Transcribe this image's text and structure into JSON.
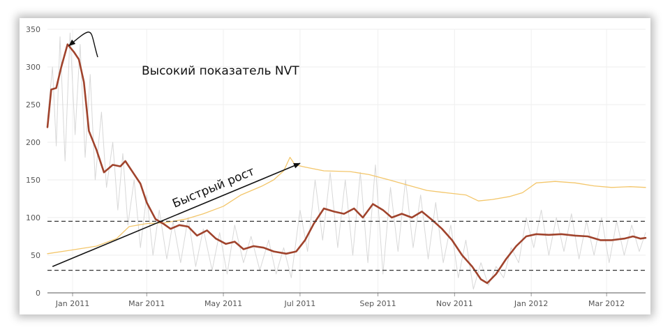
{
  "chart_data": {
    "type": "line",
    "title": "",
    "xlabel": "",
    "ylabel": "",
    "x_range": [
      "2010-12-12",
      "2012-04-01"
    ],
    "ylim": [
      0,
      350
    ],
    "y_ticks": [
      0,
      50,
      100,
      150,
      200,
      250,
      300,
      350
    ],
    "x_ticks": [
      {
        "date": "2011-01-01",
        "label": "Jan 2011"
      },
      {
        "date": "2011-03-01",
        "label": "Mar 2011"
      },
      {
        "date": "2011-05-01",
        "label": "May 2011"
      },
      {
        "date": "2011-07-01",
        "label": "Jul 2011"
      },
      {
        "date": "2011-09-01",
        "label": "Sep 2011"
      },
      {
        "date": "2011-11-01",
        "label": "Nov 2011"
      },
      {
        "date": "2012-01-01",
        "label": "Jan 2012"
      },
      {
        "date": "2012-03-01",
        "label": "Mar 2012"
      }
    ],
    "grid": true,
    "legend": "none",
    "reference_lines": [
      {
        "y": 95,
        "style": "dashed",
        "color": "#333333"
      },
      {
        "y": 30,
        "style": "dashed",
        "color": "#333333"
      }
    ],
    "series": [
      {
        "style": "thin-noisy",
        "color": "#d8d8d8",
        "points": [
          [
            "2010-12-12",
            230
          ],
          [
            "2010-12-16",
            300
          ],
          [
            "2010-12-19",
            195
          ],
          [
            "2010-12-22",
            340
          ],
          [
            "2010-12-26",
            175
          ],
          [
            "2010-12-30",
            345
          ],
          [
            "2011-01-03",
            210
          ],
          [
            "2011-01-07",
            330
          ],
          [
            "2011-01-11",
            180
          ],
          [
            "2011-01-15",
            290
          ],
          [
            "2011-01-19",
            150
          ],
          [
            "2011-01-24",
            240
          ],
          [
            "2011-01-28",
            140
          ],
          [
            "2011-02-02",
            200
          ],
          [
            "2011-02-06",
            110
          ],
          [
            "2011-02-10",
            185
          ],
          [
            "2011-02-14",
            90
          ],
          [
            "2011-02-19",
            150
          ],
          [
            "2011-02-24",
            60
          ],
          [
            "2011-03-01",
            130
          ],
          [
            "2011-03-06",
            50
          ],
          [
            "2011-03-11",
            110
          ],
          [
            "2011-03-17",
            45
          ],
          [
            "2011-03-22",
            95
          ],
          [
            "2011-03-28",
            40
          ],
          [
            "2011-04-03",
            100
          ],
          [
            "2011-04-09",
            35
          ],
          [
            "2011-04-15",
            85
          ],
          [
            "2011-04-22",
            30
          ],
          [
            "2011-04-28",
            80
          ],
          [
            "2011-05-04",
            25
          ],
          [
            "2011-05-10",
            90
          ],
          [
            "2011-05-17",
            40
          ],
          [
            "2011-05-23",
            75
          ],
          [
            "2011-05-30",
            30
          ],
          [
            "2011-06-06",
            70
          ],
          [
            "2011-06-12",
            25
          ],
          [
            "2011-06-18",
            60
          ],
          [
            "2011-06-24",
            20
          ],
          [
            "2011-07-01",
            110
          ],
          [
            "2011-07-07",
            55
          ],
          [
            "2011-07-13",
            150
          ],
          [
            "2011-07-19",
            70
          ],
          [
            "2011-07-25",
            160
          ],
          [
            "2011-07-31",
            60
          ],
          [
            "2011-08-06",
            150
          ],
          [
            "2011-08-12",
            50
          ],
          [
            "2011-08-18",
            160
          ],
          [
            "2011-08-24",
            40
          ],
          [
            "2011-08-30",
            170
          ],
          [
            "2011-09-05",
            25
          ],
          [
            "2011-09-11",
            140
          ],
          [
            "2011-09-17",
            55
          ],
          [
            "2011-09-23",
            150
          ],
          [
            "2011-09-29",
            60
          ],
          [
            "2011-10-05",
            130
          ],
          [
            "2011-10-11",
            45
          ],
          [
            "2011-10-17",
            120
          ],
          [
            "2011-10-23",
            40
          ],
          [
            "2011-10-29",
            90
          ],
          [
            "2011-11-04",
            20
          ],
          [
            "2011-11-10",
            70
          ],
          [
            "2011-11-16",
            5
          ],
          [
            "2011-11-22",
            40
          ],
          [
            "2011-11-28",
            10
          ],
          [
            "2011-12-04",
            35
          ],
          [
            "2011-12-10",
            20
          ],
          [
            "2011-12-16",
            60
          ],
          [
            "2011-12-22",
            40
          ],
          [
            "2011-12-28",
            100
          ],
          [
            "2012-01-03",
            60
          ],
          [
            "2012-01-09",
            110
          ],
          [
            "2012-01-15",
            50
          ],
          [
            "2012-01-21",
            100
          ],
          [
            "2012-01-27",
            55
          ],
          [
            "2012-02-02",
            105
          ],
          [
            "2012-02-08",
            45
          ],
          [
            "2012-02-14",
            95
          ],
          [
            "2012-02-20",
            50
          ],
          [
            "2012-02-26",
            100
          ],
          [
            "2012-03-03",
            40
          ],
          [
            "2012-03-09",
            95
          ],
          [
            "2012-03-15",
            50
          ],
          [
            "2012-03-21",
            90
          ],
          [
            "2012-03-27",
            55
          ],
          [
            "2012-04-01",
            80
          ]
        ]
      },
      {
        "style": "thin",
        "color": "#f3c66a",
        "points": [
          [
            "2010-12-12",
            52
          ],
          [
            "2011-01-01",
            57
          ],
          [
            "2011-01-20",
            62
          ],
          [
            "2011-02-05",
            72
          ],
          [
            "2011-02-15",
            88
          ],
          [
            "2011-03-01",
            92
          ],
          [
            "2011-03-15",
            93
          ],
          [
            "2011-04-01",
            98
          ],
          [
            "2011-04-15",
            105
          ],
          [
            "2011-05-01",
            115
          ],
          [
            "2011-05-15",
            130
          ],
          [
            "2011-06-01",
            142
          ],
          [
            "2011-06-10",
            150
          ],
          [
            "2011-06-18",
            162
          ],
          [
            "2011-06-23",
            180
          ],
          [
            "2011-06-27",
            170
          ],
          [
            "2011-07-05",
            167
          ],
          [
            "2011-07-20",
            162
          ],
          [
            "2011-08-10",
            161
          ],
          [
            "2011-08-25",
            157
          ],
          [
            "2011-09-10",
            150
          ],
          [
            "2011-09-25",
            143
          ],
          [
            "2011-10-10",
            136
          ],
          [
            "2011-10-25",
            133
          ],
          [
            "2011-11-10",
            130
          ],
          [
            "2011-11-20",
            122
          ],
          [
            "2011-12-01",
            124
          ],
          [
            "2011-12-15",
            128
          ],
          [
            "2011-12-25",
            133
          ],
          [
            "2012-01-05",
            146
          ],
          [
            "2012-01-20",
            148
          ],
          [
            "2012-02-05",
            146
          ],
          [
            "2012-02-20",
            142
          ],
          [
            "2012-03-05",
            140
          ],
          [
            "2012-03-20",
            141
          ],
          [
            "2012-04-01",
            140
          ]
        ]
      },
      {
        "style": "thick",
        "color": "#a0432c",
        "points": [
          [
            "2010-12-12",
            220
          ],
          [
            "2010-12-15",
            270
          ],
          [
            "2010-12-19",
            272
          ],
          [
            "2010-12-23",
            300
          ],
          [
            "2010-12-28",
            330
          ],
          [
            "2011-01-02",
            320
          ],
          [
            "2011-01-06",
            310
          ],
          [
            "2011-01-10",
            280
          ],
          [
            "2011-01-14",
            215
          ],
          [
            "2011-01-20",
            190
          ],
          [
            "2011-01-26",
            160
          ],
          [
            "2011-02-02",
            170
          ],
          [
            "2011-02-08",
            168
          ],
          [
            "2011-02-12",
            175
          ],
          [
            "2011-02-18",
            160
          ],
          [
            "2011-02-24",
            145
          ],
          [
            "2011-03-01",
            120
          ],
          [
            "2011-03-08",
            98
          ],
          [
            "2011-03-14",
            92
          ],
          [
            "2011-03-20",
            85
          ],
          [
            "2011-03-27",
            90
          ],
          [
            "2011-04-03",
            88
          ],
          [
            "2011-04-10",
            76
          ],
          [
            "2011-04-18",
            83
          ],
          [
            "2011-04-25",
            72
          ],
          [
            "2011-05-03",
            65
          ],
          [
            "2011-05-10",
            68
          ],
          [
            "2011-05-17",
            58
          ],
          [
            "2011-05-25",
            62
          ],
          [
            "2011-06-02",
            60
          ],
          [
            "2011-06-10",
            55
          ],
          [
            "2011-06-20",
            52
          ],
          [
            "2011-06-28",
            55
          ],
          [
            "2011-07-05",
            70
          ],
          [
            "2011-07-12",
            92
          ],
          [
            "2011-07-20",
            112
          ],
          [
            "2011-07-28",
            108
          ],
          [
            "2011-08-05",
            105
          ],
          [
            "2011-08-13",
            112
          ],
          [
            "2011-08-20",
            100
          ],
          [
            "2011-08-28",
            118
          ],
          [
            "2011-09-05",
            110
          ],
          [
            "2011-09-12",
            100
          ],
          [
            "2011-09-20",
            105
          ],
          [
            "2011-09-28",
            100
          ],
          [
            "2011-10-06",
            108
          ],
          [
            "2011-10-14",
            97
          ],
          [
            "2011-10-22",
            85
          ],
          [
            "2011-10-30",
            70
          ],
          [
            "2011-11-07",
            50
          ],
          [
            "2011-11-15",
            35
          ],
          [
            "2011-11-22",
            18
          ],
          [
            "2011-11-27",
            13
          ],
          [
            "2011-12-04",
            25
          ],
          [
            "2011-12-12",
            45
          ],
          [
            "2011-12-20",
            62
          ],
          [
            "2011-12-28",
            75
          ],
          [
            "2012-01-05",
            78
          ],
          [
            "2012-01-15",
            77
          ],
          [
            "2012-01-25",
            78
          ],
          [
            "2012-02-05",
            76
          ],
          [
            "2012-02-15",
            75
          ],
          [
            "2012-02-25",
            70
          ],
          [
            "2012-03-05",
            70
          ],
          [
            "2012-03-15",
            72
          ],
          [
            "2012-03-22",
            75
          ],
          [
            "2012-03-28",
            72
          ],
          [
            "2012-04-01",
            73
          ]
        ]
      }
    ],
    "annotations": [
      {
        "text": "Высокий показатель NVT",
        "arrow": {
          "from": [
            "2011-01-21",
            313
          ],
          "to": [
            "2010-12-28",
            330
          ],
          "curved": true
        }
      },
      {
        "text": "Быстрый рост",
        "arrow": {
          "from": [
            "2010-12-16",
            35
          ],
          "to": [
            "2011-07-01",
            172
          ],
          "curved": false
        }
      }
    ]
  }
}
